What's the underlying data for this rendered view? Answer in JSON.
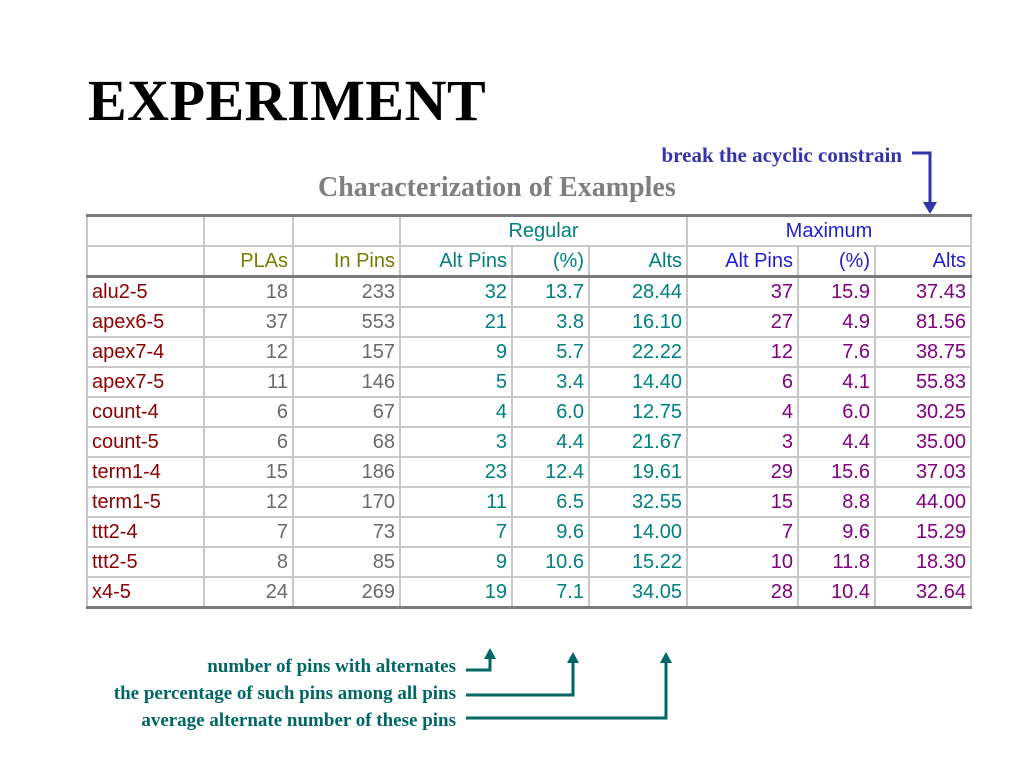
{
  "title": "EXPERIMENT",
  "subtitle": "Characterization of Examples",
  "notes": {
    "acyclic": "break the acyclic constrain",
    "pins": "number of pins with alternates",
    "percentage": "the percentage of such pins among all pins",
    "average": "average alternate number of these pins"
  },
  "table": {
    "group_headers": {
      "regular": "Regular",
      "maximum": "Maximum"
    },
    "columns": [
      "PLAs",
      "In Pins",
      "Alt Pins",
      "(%)",
      "Alts",
      "Alt Pins",
      "(%)",
      "Alts"
    ],
    "rows": [
      {
        "name": "alu2-5",
        "plas": "18",
        "in_pins": "233",
        "r_alt_pins": "32",
        "r_pct": "13.7",
        "r_alts": "28.44",
        "m_alt_pins": "37",
        "m_pct": "15.9",
        "m_alts": "37.43"
      },
      {
        "name": "apex6-5",
        "plas": "37",
        "in_pins": "553",
        "r_alt_pins": "21",
        "r_pct": "3.8",
        "r_alts": "16.10",
        "m_alt_pins": "27",
        "m_pct": "4.9",
        "m_alts": "81.56"
      },
      {
        "name": "apex7-4",
        "plas": "12",
        "in_pins": "157",
        "r_alt_pins": "9",
        "r_pct": "5.7",
        "r_alts": "22.22",
        "m_alt_pins": "12",
        "m_pct": "7.6",
        "m_alts": "38.75"
      },
      {
        "name": "apex7-5",
        "plas": "11",
        "in_pins": "146",
        "r_alt_pins": "5",
        "r_pct": "3.4",
        "r_alts": "14.40",
        "m_alt_pins": "6",
        "m_pct": "4.1",
        "m_alts": "55.83"
      },
      {
        "name": "count-4",
        "plas": "6",
        "in_pins": "67",
        "r_alt_pins": "4",
        "r_pct": "6.0",
        "r_alts": "12.75",
        "m_alt_pins": "4",
        "m_pct": "6.0",
        "m_alts": "30.25"
      },
      {
        "name": "count-5",
        "plas": "6",
        "in_pins": "68",
        "r_alt_pins": "3",
        "r_pct": "4.4",
        "r_alts": "21.67",
        "m_alt_pins": "3",
        "m_pct": "4.4",
        "m_alts": "35.00"
      },
      {
        "name": "term1-4",
        "plas": "15",
        "in_pins": "186",
        "r_alt_pins": "23",
        "r_pct": "12.4",
        "r_alts": "19.61",
        "m_alt_pins": "29",
        "m_pct": "15.6",
        "m_alts": "37.03"
      },
      {
        "name": "term1-5",
        "plas": "12",
        "in_pins": "170",
        "r_alt_pins": "11",
        "r_pct": "6.5",
        "r_alts": "32.55",
        "m_alt_pins": "15",
        "m_pct": "8.8",
        "m_alts": "44.00"
      },
      {
        "name": "ttt2-4",
        "plas": "7",
        "in_pins": "73",
        "r_alt_pins": "7",
        "r_pct": "9.6",
        "r_alts": "14.00",
        "m_alt_pins": "7",
        "m_pct": "9.6",
        "m_alts": "15.29"
      },
      {
        "name": "ttt2-5",
        "plas": "8",
        "in_pins": "85",
        "r_alt_pins": "9",
        "r_pct": "10.6",
        "r_alts": "15.22",
        "m_alt_pins": "10",
        "m_pct": "11.8",
        "m_alts": "18.30"
      },
      {
        "name": "x4-5",
        "plas": "24",
        "in_pins": "269",
        "r_alt_pins": "19",
        "r_pct": "7.1",
        "r_alts": "34.05",
        "m_alt_pins": "28",
        "m_pct": "10.4",
        "m_alts": "32.64"
      }
    ]
  },
  "colors": {
    "title": "#000000",
    "subtitle": "#7f7f7f",
    "acyclic_note": "#3333aa",
    "bottom_notes": "#006666",
    "row_names": "#8b0000",
    "header_base": "#7a7a00",
    "regular": "#008080",
    "maximum": "#1f1fd0",
    "maximum_values": "#800080",
    "base_values": "#6a6a6a"
  }
}
